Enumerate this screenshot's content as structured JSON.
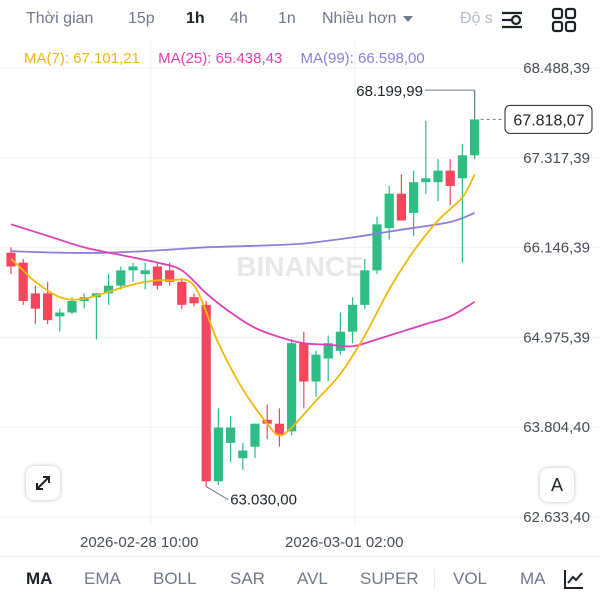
{
  "timeframe_tabs": {
    "time": "Thời gian",
    "m15": "15p",
    "h1": "1h",
    "h4": "4h",
    "w1": "1n",
    "more": "Nhiều hơn",
    "depth": "Độ s"
  },
  "ma_legend": {
    "ma7": "MA(7): 67.101,21",
    "ma25": "MA(25): 65.438,43",
    "ma99": "MA(99): 66.598,00"
  },
  "colors": {
    "up": "#2ebd85",
    "down": "#f6465d",
    "ma7": "#f0b90b",
    "ma25": "#e040b5",
    "ma99": "#8f7fd8"
  },
  "price_axis": [
    "68.488,39",
    "67.317,39",
    "66.146,39",
    "64.975,39",
    "63.804,40",
    "62.633,40"
  ],
  "current_price": "67.818,07",
  "high_label": "68.199,99",
  "low_label": "63.030,00",
  "watermark": "BINANCE",
  "time_axis": [
    "2026-02-28 10:00",
    "2026-03-01 02:00"
  ],
  "font_button": "A",
  "indicators": [
    "MA",
    "EMA",
    "BOLL",
    "SAR",
    "AVL",
    "SUPER",
    "VOL",
    "MA"
  ],
  "chart_data": {
    "type": "candlestick",
    "ylim": [
      62633.4,
      68488.39
    ],
    "candles": [
      {
        "o": 66080,
        "h": 66150,
        "l": 65800,
        "c": 65900
      },
      {
        "o": 65950,
        "h": 66000,
        "l": 65400,
        "c": 65450
      },
      {
        "o": 65550,
        "h": 65650,
        "l": 65150,
        "c": 65350
      },
      {
        "o": 65550,
        "h": 65700,
        "l": 65150,
        "c": 65200
      },
      {
        "o": 65250,
        "h": 65350,
        "l": 65050,
        "c": 65300
      },
      {
        "o": 65300,
        "h": 65500,
        "l": 65280,
        "c": 65450
      },
      {
        "o": 65450,
        "h": 65550,
        "l": 65350,
        "c": 65500
      },
      {
        "o": 65500,
        "h": 65550,
        "l": 64950,
        "c": 65550
      },
      {
        "o": 65550,
        "h": 65800,
        "l": 65400,
        "c": 65650
      },
      {
        "o": 65650,
        "h": 65900,
        "l": 65600,
        "c": 65850
      },
      {
        "o": 65850,
        "h": 65950,
        "l": 65700,
        "c": 65900
      },
      {
        "o": 65800,
        "h": 65950,
        "l": 65600,
        "c": 65850
      },
      {
        "o": 65900,
        "h": 65950,
        "l": 65600,
        "c": 65650
      },
      {
        "o": 65850,
        "h": 65950,
        "l": 65650,
        "c": 65700
      },
      {
        "o": 65700,
        "h": 65750,
        "l": 65350,
        "c": 65400
      },
      {
        "o": 65500,
        "h": 65550,
        "l": 65380,
        "c": 65420
      },
      {
        "o": 65400,
        "h": 65450,
        "l": 63030,
        "c": 63100
      },
      {
        "o": 63100,
        "h": 64050,
        "l": 63050,
        "c": 63800
      },
      {
        "o": 63600,
        "h": 63950,
        "l": 63350,
        "c": 63800
      },
      {
        "o": 63400,
        "h": 63600,
        "l": 63250,
        "c": 63500
      },
      {
        "o": 63550,
        "h": 63850,
        "l": 63400,
        "c": 63850
      },
      {
        "o": 63900,
        "h": 64100,
        "l": 63650,
        "c": 63850
      },
      {
        "o": 63850,
        "h": 64050,
        "l": 63550,
        "c": 63700
      },
      {
        "o": 63750,
        "h": 64950,
        "l": 63700,
        "c": 64900
      },
      {
        "o": 64900,
        "h": 65050,
        "l": 64050,
        "c": 64400
      },
      {
        "o": 64400,
        "h": 64800,
        "l": 64200,
        "c": 64750
      },
      {
        "o": 64700,
        "h": 65000,
        "l": 64400,
        "c": 64900
      },
      {
        "o": 64800,
        "h": 65300,
        "l": 64750,
        "c": 65050
      },
      {
        "o": 65050,
        "h": 65500,
        "l": 64900,
        "c": 65400
      },
      {
        "o": 65400,
        "h": 66000,
        "l": 65350,
        "c": 65850
      },
      {
        "o": 65850,
        "h": 66550,
        "l": 65800,
        "c": 66450
      },
      {
        "o": 66400,
        "h": 66950,
        "l": 66250,
        "c": 66850
      },
      {
        "o": 66850,
        "h": 67100,
        "l": 66550,
        "c": 66500
      },
      {
        "o": 66600,
        "h": 67150,
        "l": 66300,
        "c": 67000
      },
      {
        "o": 67000,
        "h": 67800,
        "l": 66850,
        "c": 67050
      },
      {
        "o": 67000,
        "h": 67300,
        "l": 66750,
        "c": 67150
      },
      {
        "o": 67150,
        "h": 67300,
        "l": 66700,
        "c": 66950
      },
      {
        "o": 67050,
        "h": 67500,
        "l": 65950,
        "c": 67350
      },
      {
        "o": 67350,
        "h": 68199.99,
        "l": 67300,
        "c": 67818.07
      }
    ],
    "ma7": [
      [
        0,
        66000
      ],
      [
        1,
        65850
      ],
      [
        2,
        65700
      ],
      [
        4,
        65500
      ],
      [
        6,
        65480
      ],
      [
        9,
        65620
      ],
      [
        11,
        65700
      ],
      [
        13,
        65720
      ],
      [
        15,
        65650
      ],
      [
        17,
        64900
      ],
      [
        19,
        64300
      ],
      [
        21,
        63850
      ],
      [
        22,
        63700
      ],
      [
        23,
        63800
      ],
      [
        25,
        64150
      ],
      [
        27,
        64500
      ],
      [
        29,
        65000
      ],
      [
        31,
        65600
      ],
      [
        33,
        66100
      ],
      [
        35,
        66500
      ],
      [
        37,
        66800
      ],
      [
        38,
        67101.21
      ]
    ],
    "ma25": [
      [
        0,
        66450
      ],
      [
        3,
        66300
      ],
      [
        6,
        66150
      ],
      [
        9,
        66050
      ],
      [
        12,
        65950
      ],
      [
        14,
        65850
      ],
      [
        16,
        65550
      ],
      [
        18,
        65300
      ],
      [
        20,
        65100
      ],
      [
        22,
        64980
      ],
      [
        24,
        64900
      ],
      [
        26,
        64880
      ],
      [
        28,
        64860
      ],
      [
        30,
        64950
      ],
      [
        32,
        65050
      ],
      [
        34,
        65150
      ],
      [
        36,
        65250
      ],
      [
        38,
        65438.43
      ]
    ],
    "ma99": [
      [
        0,
        66100
      ],
      [
        4,
        66080
      ],
      [
        8,
        66080
      ],
      [
        12,
        66110
      ],
      [
        16,
        66150
      ],
      [
        20,
        66170
      ],
      [
        24,
        66200
      ],
      [
        28,
        66280
      ],
      [
        32,
        66380
      ],
      [
        36,
        66480
      ],
      [
        38,
        66598.0
      ]
    ]
  }
}
